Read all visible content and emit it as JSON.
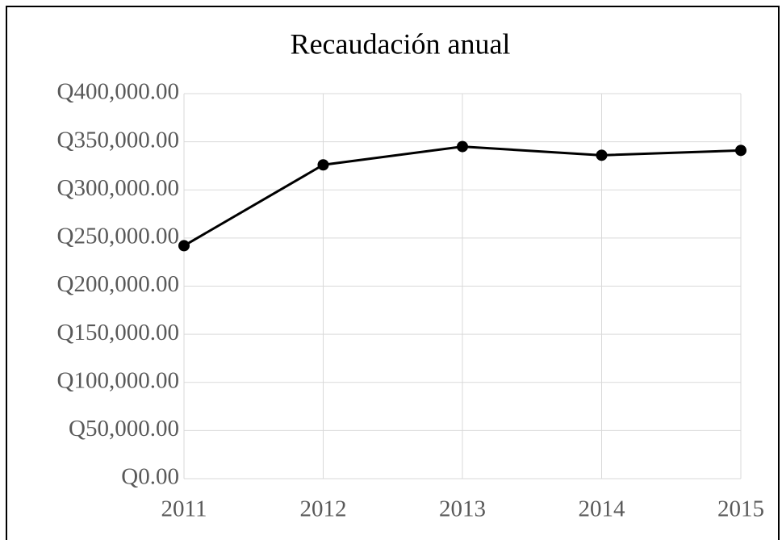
{
  "chart_data": {
    "type": "line",
    "title": "Recaudación anual",
    "x": [
      2011,
      2012,
      2013,
      2014,
      2015
    ],
    "series": [
      {
        "name": "Recaudación",
        "color": "#000000",
        "values": [
          242000,
          326000,
          345000,
          336000,
          341000
        ]
      }
    ],
    "xlim": [
      2011,
      2015
    ],
    "xticks": [
      2011,
      2012,
      2013,
      2014,
      2015
    ],
    "ylim": [
      0,
      400000
    ],
    "yticks": [
      {
        "value": 0,
        "label": "Q0.00"
      },
      {
        "value": 50000,
        "label": "Q50,000.00"
      },
      {
        "value": 100000,
        "label": "Q100,000.00"
      },
      {
        "value": 150000,
        "label": "Q150,000.00"
      },
      {
        "value": 200000,
        "label": "Q200,000.00"
      },
      {
        "value": 250000,
        "label": "Q250,000.00"
      },
      {
        "value": 300000,
        "label": "Q300,000.00"
      },
      {
        "value": 350000,
        "label": "Q350,000.00"
      },
      {
        "value": 400000,
        "label": "Q400,000.00"
      }
    ],
    "grid": true
  }
}
